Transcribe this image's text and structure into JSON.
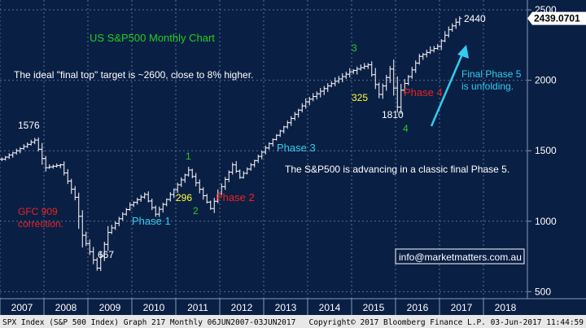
{
  "chart_data": {
    "type": "ohlc",
    "title": "US S&P500 Monthly Chart",
    "y_axis": {
      "ticks": [
        500,
        1000,
        1500,
        2000,
        2500
      ],
      "range": [
        450,
        2570
      ],
      "position": "right"
    },
    "x_axis": {
      "tick_labels": [
        "2007",
        "2008",
        "2009",
        "2010",
        "2011",
        "2012",
        "2013",
        "2014",
        "2015",
        "2016",
        "2017",
        "2018"
      ],
      "range": [
        "2007-01",
        "2018-12"
      ]
    },
    "grid": true,
    "last_value": "2439.0701",
    "last_value_color": "#ffffff",
    "series": [
      {
        "x": [
          "2007-01",
          "2007-07",
          "2007-10",
          "2008-01",
          "2008-05",
          "2008-09",
          "2008-11",
          "2009-03",
          "2009-06",
          "2009-12",
          "2010-04",
          "2010-07",
          "2011-04",
          "2011-10",
          "2012-04",
          "2012-06",
          "2013-05",
          "2013-12",
          "2014-06",
          "2014-12",
          "2015-05",
          "2015-08",
          "2015-11",
          "2016-01",
          "2016-02",
          "2016-07",
          "2016-12",
          "2017-03",
          "2017-06"
        ],
        "close": [
          1440,
          1530,
          1576,
          1380,
          1400,
          1170,
          900,
          667,
          920,
          1115,
          1190,
          1050,
          1363,
          1090,
          1400,
          1310,
          1640,
          1848,
          1960,
          2060,
          2110,
          1900,
          2080,
          1810,
          1930,
          2170,
          2240,
          2360,
          2439
        ]
      }
    ],
    "annotations": {
      "target_note": "The ideal \"final top\" target is ~2600, close to 8% higher.",
      "advance_note": "The S&P500 is advancing in a classic final Phase 5.",
      "final_phase_note": [
        "Final Phase 5",
        "is unfolding."
      ],
      "gfc_note": [
        "GFC 909",
        "correction."
      ],
      "phase1": "Phase 1",
      "phase2": "Phase 2",
      "phase3": "Phase 3",
      "phase4": "Phase 4",
      "wave1": "1",
      "wave2": "2",
      "wave3": "3",
      "wave4": "4",
      "pts296": "296",
      "pts325": "325",
      "level_1576": "1576",
      "level_667": "667",
      "level_1810": "1810",
      "level_2440": "2440",
      "contact": "info@marketmatters.com.au"
    },
    "colors": {
      "background": "#0a1f44",
      "bars": "#ffffff",
      "grid": "#5a6f95",
      "green": "#22cc22",
      "red": "#ee2222",
      "cyan": "#33ccee",
      "yellow": "#ffff33"
    }
  },
  "footer": {
    "left": "SPX Index (S&P 500 Index) Graph 217  Monthly 06JUN2007-03JUN2017",
    "right": "Copyright© 2017 Bloomberg Finance L.P.    03-Jun-2017 11:44:59"
  }
}
